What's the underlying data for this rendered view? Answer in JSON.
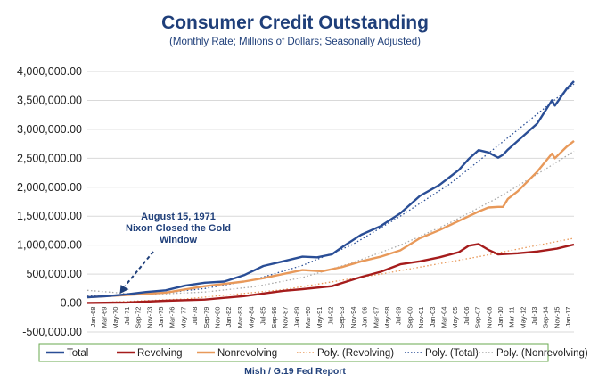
{
  "chart_data": {
    "type": "line",
    "title": "Consumer Credit Outstanding",
    "subtitle": "(Monthly Rate; Millions of Dollars; Seasonally Adjusted)",
    "source": "Mish / G.19 Fed Report",
    "ylim": [
      -500000,
      4000000
    ],
    "y_ticks": [
      "-500,000.00",
      "0.00",
      "500,000.00",
      "1,000,000.00",
      "1,500,000.00",
      "2,000,000.00",
      "2,500,000.00",
      "3,000,000.00",
      "3,500,000.00",
      "4,000,000.00"
    ],
    "y_tick_values": [
      -500000,
      0,
      500000,
      1000000,
      1500000,
      2000000,
      2500000,
      3000000,
      3500000,
      4000000
    ],
    "x_ticks": [
      "Jan-68",
      "Mar-69",
      "May-70",
      "Jul-71",
      "Sep-72",
      "Nov-73",
      "Jan-75",
      "Mar-76",
      "May-77",
      "Jul-78",
      "Sep-79",
      "Nov-80",
      "Jan-82",
      "Mar-83",
      "May-84",
      "Jul-85",
      "Sep-86",
      "Nov-87",
      "Jan-89",
      "Mar-90",
      "May-91",
      "Jul-92",
      "Sep-93",
      "Nov-94",
      "Jan-96",
      "Mar-97",
      "May-98",
      "Jul-99",
      "Sep-00",
      "Nov-01",
      "Jan-03",
      "Mar-04",
      "May-05",
      "Jul-06",
      "Sep-07",
      "Nov-08",
      "Jan-10",
      "Mar-11",
      "May-12",
      "Jul-13",
      "Sep-14",
      "Nov-15",
      "Jan-17"
    ],
    "x_start": 1968.0,
    "x_end": 2017.75,
    "grid": true,
    "legend_position": "bottom",
    "annotation": {
      "lines": [
        "August 15, 1971",
        "Nixon Closed the Gold",
        "Window"
      ],
      "x": 1971.6,
      "y": 145000
    },
    "series": [
      {
        "name": "Total",
        "color": "#2a4e96",
        "style": "solid",
        "x": [
          1968,
          1970,
          1972,
          1974,
          1976,
          1978,
          1980,
          1982,
          1984,
          1986,
          1988,
          1990,
          1991.5,
          1993,
          1994,
          1996,
          1998,
          2000,
          2002,
          2004,
          2006,
          2007,
          2008,
          2009,
          2010,
          2010.5,
          2011,
          2012,
          2014,
          2015.5,
          2015.8,
          2017,
          2017.75
        ],
        "y": [
          100000,
          120000,
          150000,
          190000,
          220000,
          300000,
          350000,
          370000,
          480000,
          640000,
          720000,
          800000,
          790000,
          840000,
          960000,
          1180000,
          1330000,
          1550000,
          1850000,
          2040000,
          2300000,
          2490000,
          2640000,
          2600000,
          2510000,
          2560000,
          2650000,
          2800000,
          3100000,
          3500000,
          3410000,
          3700000,
          3830000
        ]
      },
      {
        "name": "Revolving",
        "color": "#a51c1c",
        "style": "solid",
        "x": [
          1968,
          1972,
          1976,
          1980,
          1984,
          1988,
          1990,
          1993,
          1996,
          1998,
          2000,
          2002,
          2004,
          2006,
          2007,
          2008,
          2009,
          2010,
          2012,
          2014,
          2016,
          2017.75
        ],
        "y": [
          2000,
          10000,
          40000,
          60000,
          120000,
          210000,
          240000,
          290000,
          450000,
          540000,
          670000,
          720000,
          790000,
          880000,
          990000,
          1020000,
          920000,
          840000,
          860000,
          890000,
          940000,
          1010000
        ]
      },
      {
        "name": "Nonrevolving",
        "color": "#e8995a",
        "style": "solid",
        "x": [
          1968,
          1972,
          1976,
          1980,
          1984,
          1986,
          1988,
          1990,
          1992,
          1994,
          1996,
          1998,
          2000,
          2002,
          2004,
          2006,
          2008,
          2009,
          2010,
          2010.5,
          2011,
          2012,
          2014,
          2015.5,
          2015.8,
          2017,
          2017.75
        ],
        "y": [
          100000,
          140000,
          180000,
          290000,
          370000,
          430000,
          500000,
          570000,
          550000,
          620000,
          720000,
          800000,
          910000,
          1120000,
          1260000,
          1420000,
          1580000,
          1650000,
          1660000,
          1660000,
          1800000,
          1930000,
          2270000,
          2580000,
          2500000,
          2700000,
          2800000
        ]
      },
      {
        "name": "Poly. (Revolving)",
        "color": "#e8995a",
        "style": "dotted",
        "x": [
          1968,
          1978,
          1988,
          1998,
          2008,
          2017.75
        ],
        "y": [
          0,
          70000,
          230000,
          500000,
          800000,
          1120000
        ]
      },
      {
        "name": "Poly. (Total)",
        "color": "#2a4e96",
        "style": "dotted",
        "x": [
          1968,
          1975,
          1980,
          1985,
          1990,
          1995,
          2000,
          2005,
          2010,
          2015,
          2017.75
        ],
        "y": [
          120000,
          160000,
          250000,
          400000,
          650000,
          1000000,
          1500000,
          2050000,
          2720000,
          3400000,
          3780000
        ]
      },
      {
        "name": "Poly. (Nonrevolving)",
        "color": "#a9a9a9",
        "style": "dotted",
        "x": [
          1968,
          1972,
          1976,
          1980,
          1985,
          1990,
          1995,
          2000,
          2005,
          2010,
          2015,
          2017.75
        ],
        "y": [
          220000,
          165000,
          160000,
          190000,
          280000,
          440000,
          690000,
          1000000,
          1380000,
          1820000,
          2330000,
          2620000
        ]
      }
    ]
  }
}
